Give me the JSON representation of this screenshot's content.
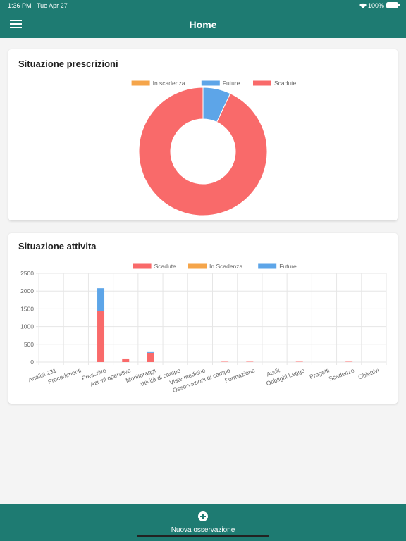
{
  "status_bar": {
    "time": "1:36 PM",
    "date": "Tue Apr 27",
    "battery": "100%"
  },
  "header": {
    "title": "Home"
  },
  "chart_data": [
    {
      "type": "doughnut",
      "title": "Situazione prescrizioni",
      "categories": [
        "In scadenza",
        "Future",
        "Scadute"
      ],
      "values": [
        0,
        7,
        93
      ],
      "colors": [
        "#f5a54a",
        "#5da5e8",
        "#f96a6a"
      ]
    },
    {
      "type": "bar",
      "title": "Situazione attivita",
      "stacked": true,
      "grid": true,
      "categories": [
        "Analisi 231",
        "Procedimenti",
        "Prescritte",
        "Azioni operative",
        "Monitoraggi",
        "Attività di campo",
        "Viste mediche",
        "Osservazioni di campo",
        "Formazione",
        "Audit",
        "Obblighi Legge",
        "Progetti",
        "Scadenze",
        "Obiettivi"
      ],
      "series": [
        {
          "name": "Scadute",
          "color": "#f96a6a",
          "values": [
            0,
            0,
            1430,
            100,
            260,
            0,
            0,
            10,
            10,
            0,
            10,
            0,
            10,
            0
          ]
        },
        {
          "name": "In Scadenza",
          "color": "#f5a54a",
          "values": [
            0,
            0,
            0,
            0,
            0,
            0,
            0,
            0,
            0,
            0,
            0,
            0,
            0,
            0
          ]
        },
        {
          "name": "Future",
          "color": "#5da5e8",
          "values": [
            0,
            0,
            650,
            0,
            40,
            0,
            0,
            0,
            0,
            0,
            0,
            0,
            0,
            0
          ]
        }
      ],
      "ylim": [
        0,
        2500
      ],
      "yticks": [
        0,
        500,
        1000,
        1500,
        2000,
        2500
      ]
    }
  ],
  "footer": {
    "action": "Nuova osservazione"
  }
}
